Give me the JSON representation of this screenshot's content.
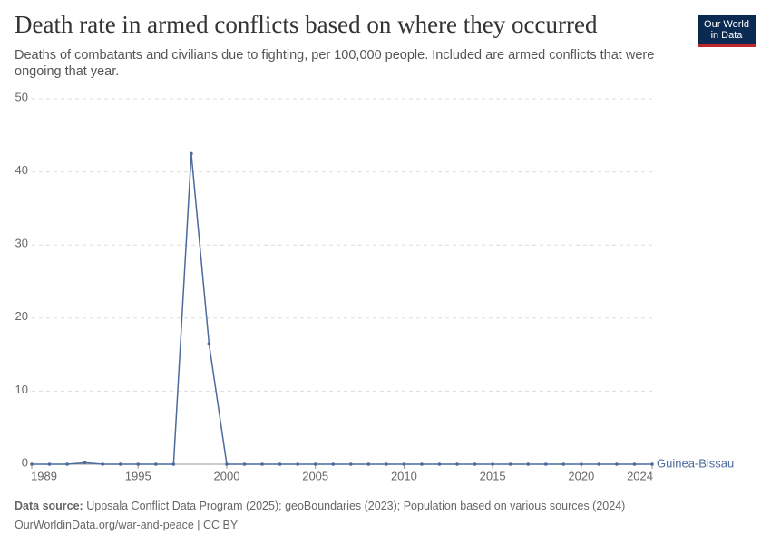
{
  "chart_data": {
    "type": "line",
    "title": "Death rate in armed conflicts based on where they occurred",
    "subtitle": "Deaths of combatants and civilians due to fighting, per 100,000 people. Included are armed conflicts that were ongoing that year.",
    "logo": [
      "Our World",
      "in Data"
    ],
    "x": [
      1989,
      1990,
      1991,
      1992,
      1993,
      1994,
      1995,
      1996,
      1997,
      1998,
      1999,
      2000,
      2001,
      2002,
      2003,
      2004,
      2005,
      2006,
      2007,
      2008,
      2009,
      2010,
      2011,
      2012,
      2013,
      2014,
      2015,
      2016,
      2017,
      2018,
      2019,
      2020,
      2021,
      2022,
      2023,
      2024
    ],
    "series": [
      {
        "name": "Guinea-Bissau",
        "color": "#4c6a9c",
        "values": [
          0,
          0,
          0,
          0.2,
          0,
          0,
          0,
          0,
          0,
          42.5,
          16.5,
          0,
          0,
          0,
          0,
          0,
          0,
          0,
          0,
          0,
          0,
          0,
          0,
          0,
          0,
          0,
          0,
          0,
          0,
          0,
          0,
          0,
          0,
          0,
          0,
          0
        ]
      }
    ],
    "xlim": [
      1989,
      2024
    ],
    "xticks": [
      1989,
      1995,
      2000,
      2005,
      2010,
      2015,
      2020,
      2024
    ],
    "ylim": [
      0,
      50
    ],
    "yticks": [
      0,
      10,
      20,
      30,
      40,
      50
    ],
    "grid": true,
    "source_label": "Data source:",
    "source": "Uppsala Conflict Data Program (2025); geoBoundaries (2023); Population based on various sources (2024)",
    "credit": "OurWorldinData.org/war-and-peace | CC BY"
  }
}
